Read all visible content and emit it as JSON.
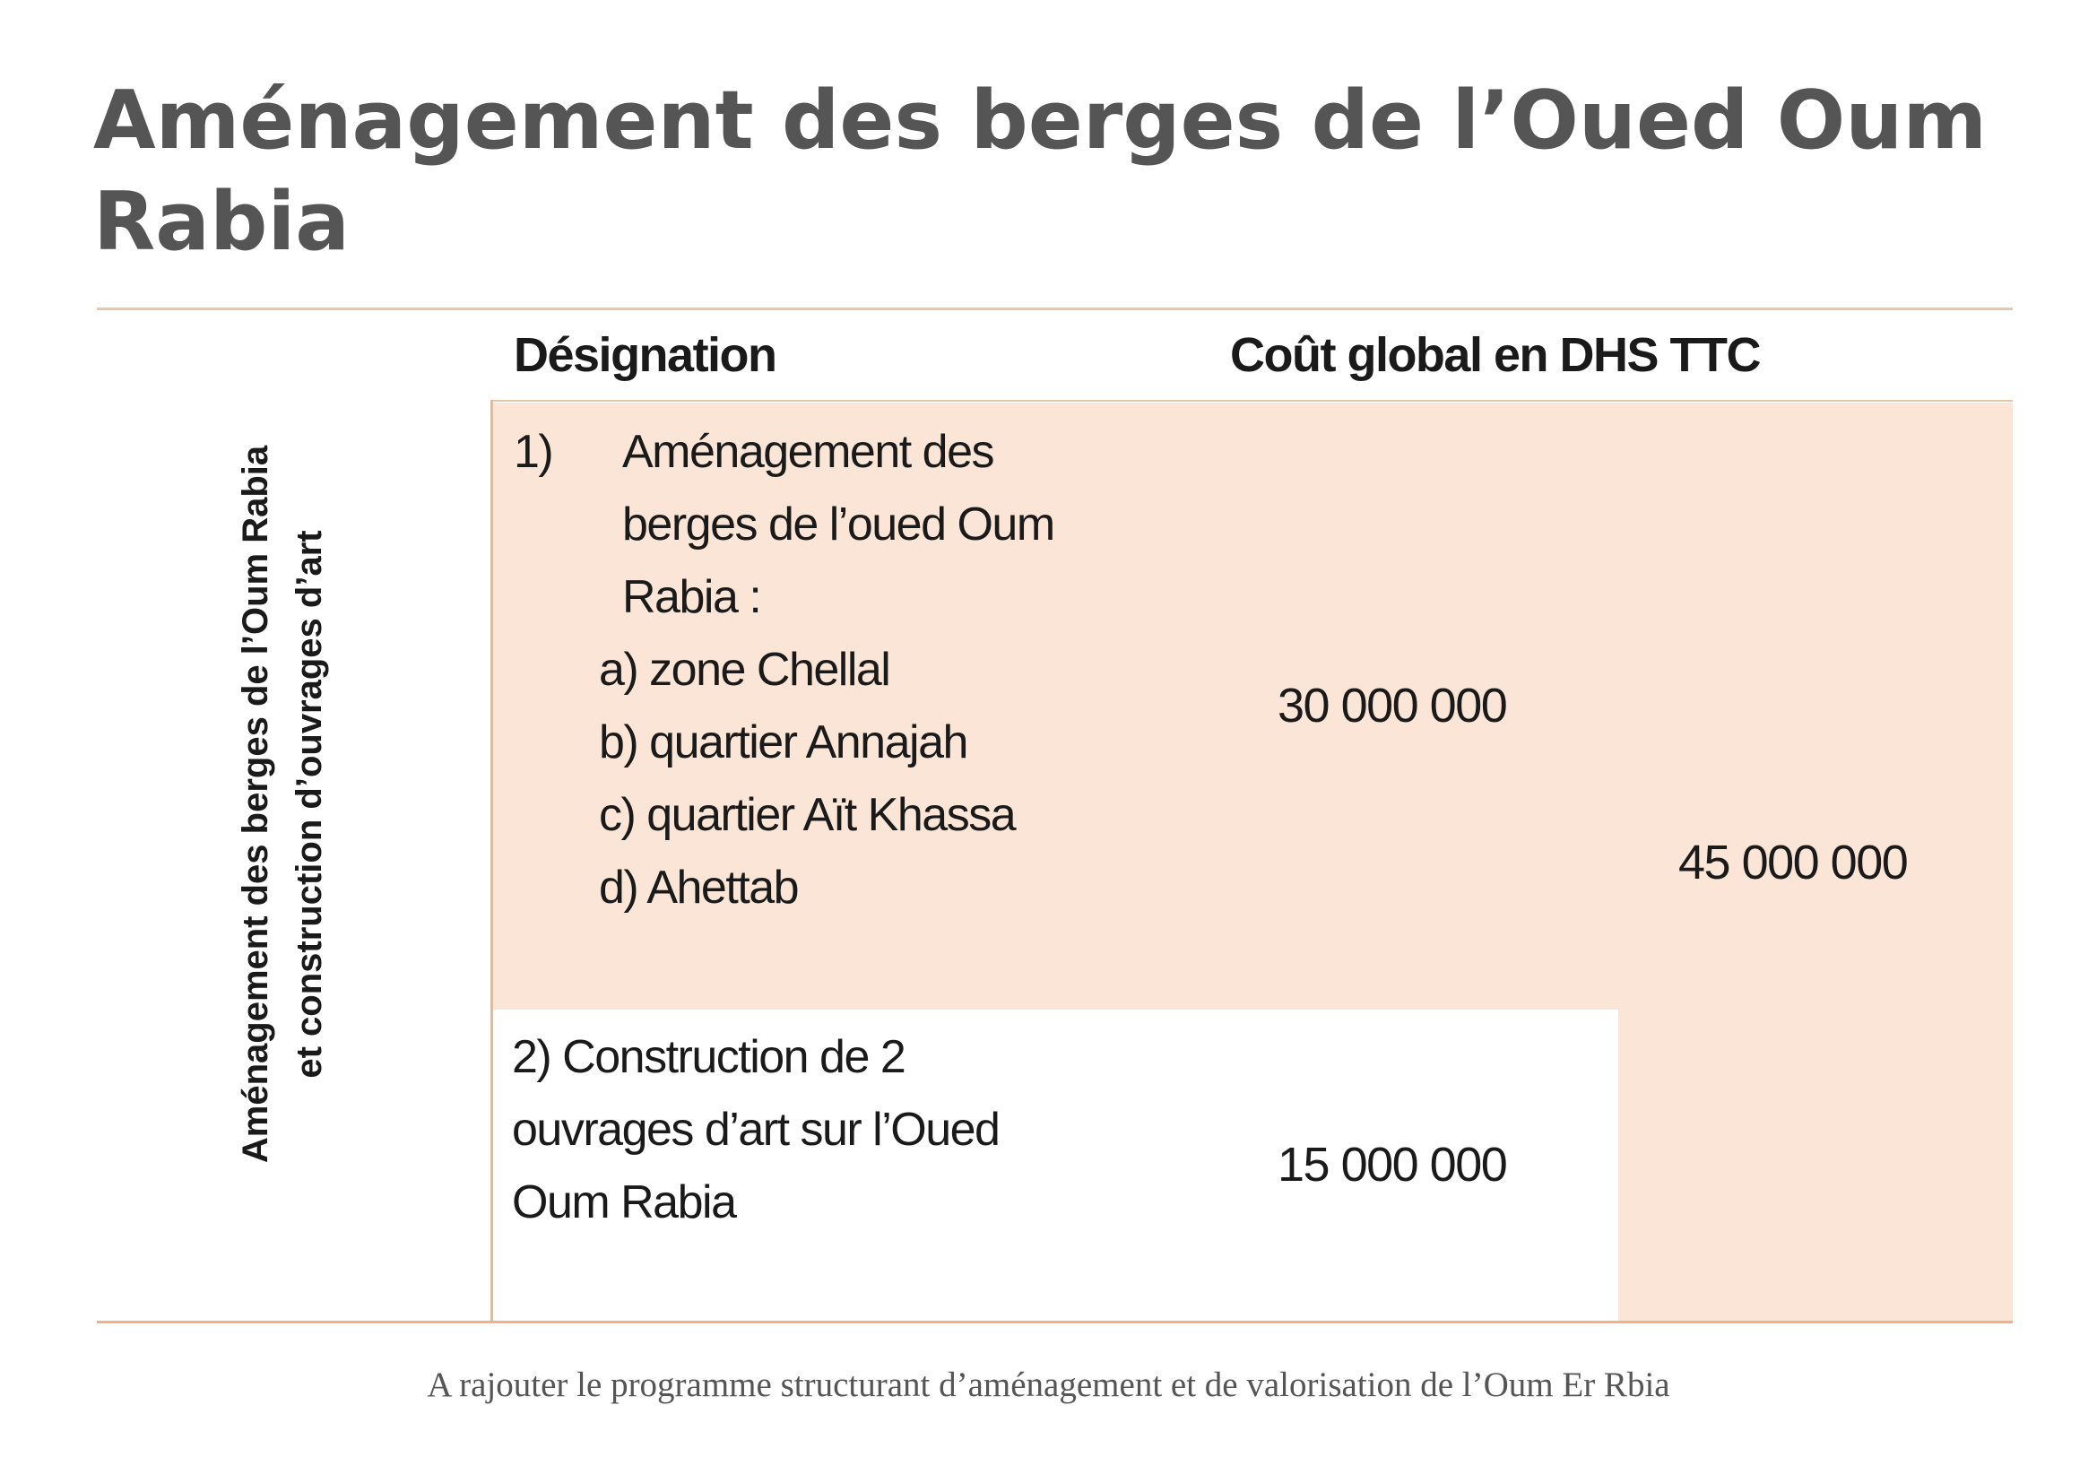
{
  "title": "Aménagement des berges de l’Oued Oum Rabia",
  "table": {
    "row_header": [
      "Aménagement des berges de l’Oum Rabia",
      "et construction d’ouvrages d’art"
    ],
    "headers": {
      "designation": "Désignation",
      "cost": "Coût global en DHS TTC"
    },
    "rows": [
      {
        "number": "1)",
        "designation_lines": [
          "Aménagement des",
          "berges de l’oued Oum",
          "Rabia :"
        ],
        "sub_items": [
          "a) zone Chellal",
          "b) quartier Annajah",
          "c) quartier Aït Khassa",
          "d) Ahettab"
        ],
        "cost": "30 000 000"
      },
      {
        "designation_lines": [
          "2) Construction de 2",
          "ouvrages d’art sur l’Oued",
          "Oum Rabia"
        ],
        "cost": "15 000 000"
      }
    ],
    "total": "45 000 000"
  },
  "caption": "A rajouter le programme structurant d’aménagement et de valorisation de l’Oum Er Rbia",
  "colors": {
    "title": "#555555",
    "fill": "#fbe5d6",
    "rule": "#f4b183"
  }
}
